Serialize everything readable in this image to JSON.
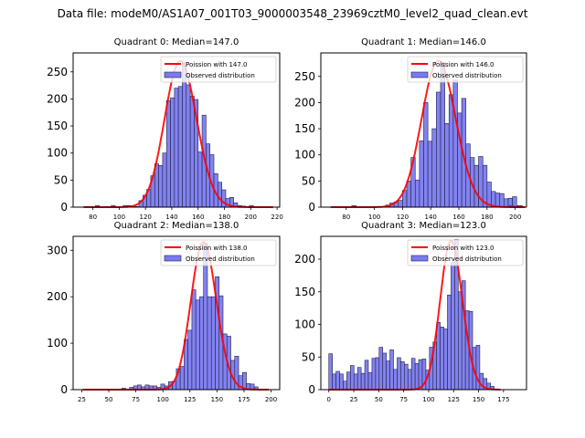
{
  "suptitle": "Data file: modeM0/AS1A07_001T03_9000003548_23969cztM0_level2_quad_clean.evt",
  "colors": {
    "bar_fill": "#7b7bf0",
    "bar_edge": "#000000",
    "curve": "#ff0000"
  },
  "chart_data": [
    {
      "type": "bar",
      "title": "Quadrant 0: Median=147.0",
      "legend": [
        "Poission with 147.0",
        "Observed distribution"
      ],
      "legend_position": "top-right",
      "xlim": [
        65,
        222
      ],
      "ylim": [
        0,
        285
      ],
      "xticks": [
        80,
        100,
        120,
        140,
        160,
        180,
        200,
        220
      ],
      "yticks": [
        0,
        50,
        100,
        150,
        200,
        250
      ],
      "median": 147.0,
      "bin_start": 73,
      "bin_width": 3,
      "values": [
        1,
        0,
        0,
        3,
        0,
        0,
        0,
        3,
        0,
        0,
        3,
        3,
        1,
        1,
        12,
        22,
        33,
        58,
        80,
        77,
        100,
        197,
        202,
        220,
        223,
        268,
        226,
        205,
        199,
        102,
        170,
        117,
        97,
        62,
        46,
        32,
        16,
        18,
        8,
        3,
        2,
        0,
        3,
        0,
        0,
        0,
        0,
        0
      ],
      "poisson_peak": 270
    },
    {
      "type": "bar",
      "title": "Quadrant 1: Median=146.0",
      "legend": [
        "Poission with 146.0",
        "Observed distribution"
      ],
      "legend_position": "top-right",
      "xlim": [
        62,
        208
      ],
      "ylim": [
        0,
        295
      ],
      "xticks": [
        80,
        100,
        120,
        140,
        160,
        180,
        200
      ],
      "yticks": [
        0,
        50,
        100,
        150,
        200,
        250
      ],
      "median": 146.0,
      "bin_start": 69,
      "bin_width": 3,
      "values": [
        0,
        0,
        0,
        0,
        0,
        3,
        0,
        0,
        0,
        0,
        0,
        1,
        1,
        4,
        8,
        10,
        13,
        32,
        50,
        95,
        52,
        127,
        200,
        126,
        150,
        220,
        277,
        160,
        215,
        243,
        180,
        208,
        121,
        95,
        80,
        97,
        80,
        48,
        30,
        27,
        26,
        16,
        17,
        20,
        3,
        0
      ],
      "extra_tail": [
        [
          196,
          3
        ],
        [
          202,
          3
        ]
      ],
      "poisson_peak": 280
    },
    {
      "type": "bar",
      "title": "Quadrant 2: Median=138.0",
      "legend": [
        "Poission with 138.0",
        "Observed distribution"
      ],
      "legend_position": "top-right",
      "xlim": [
        17,
        208
      ],
      "ylim": [
        0,
        330
      ],
      "xticks": [
        25,
        50,
        75,
        100,
        125,
        150,
        175,
        200
      ],
      "yticks": [
        0,
        100,
        200,
        300
      ],
      "median": 138.0,
      "bin_start": 26,
      "bin_width": 3.6,
      "values": [
        0,
        1,
        0,
        0,
        0,
        0,
        0,
        0,
        0,
        0,
        3,
        0,
        5,
        8,
        10,
        6,
        10,
        8,
        8,
        5,
        12,
        8,
        17,
        18,
        45,
        50,
        108,
        128,
        215,
        193,
        200,
        315,
        200,
        200,
        243,
        202,
        120,
        115,
        63,
        72,
        30,
        37,
        13,
        12,
        6,
        0,
        0,
        0
      ],
      "poisson_peak": 318
    },
    {
      "type": "bar",
      "title": "Quadrant 3: Median=123.0",
      "legend": [
        "Poission with 123.0",
        "Observed distribution"
      ],
      "legend_position": "top-right",
      "xlim": [
        -8,
        198
      ],
      "ylim": [
        0,
        235
      ],
      "xticks": [
        0,
        25,
        50,
        75,
        100,
        125,
        150,
        175
      ],
      "yticks": [
        0,
        50,
        100,
        150,
        200
      ],
      "median": 123.0,
      "bin_start": 0,
      "bin_width": 3.6,
      "values": [
        55,
        24,
        28,
        24,
        13,
        27,
        37,
        24,
        34,
        25,
        45,
        26,
        48,
        49,
        65,
        56,
        44,
        61,
        31,
        49,
        43,
        39,
        31,
        48,
        40,
        46,
        47,
        30,
        65,
        73,
        103,
        96,
        93,
        145,
        195,
        230,
        150,
        167,
        121,
        120,
        65,
        68,
        25,
        17,
        10,
        5,
        1,
        0
      ],
      "poisson_peak": 228
    }
  ]
}
